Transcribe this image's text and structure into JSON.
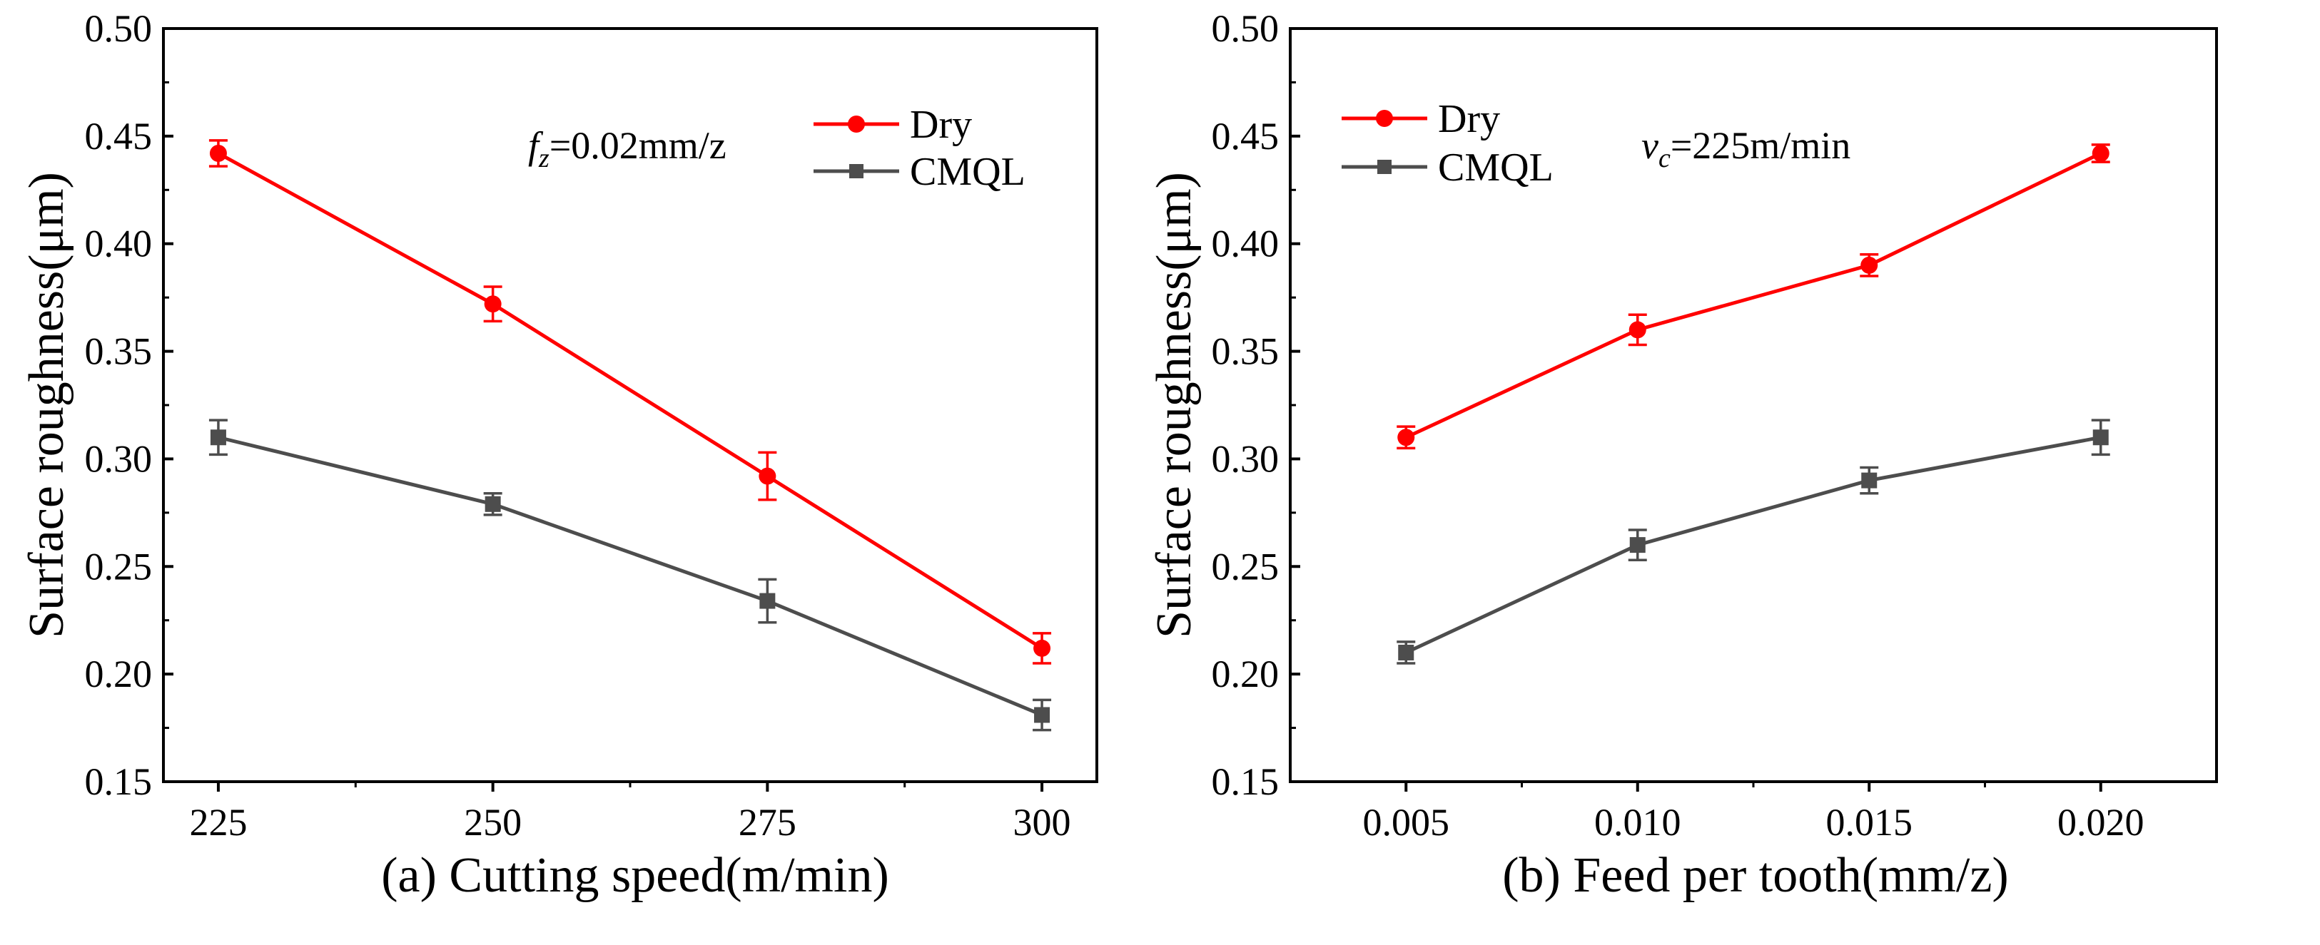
{
  "chart_data": [
    {
      "type": "line",
      "xlabel": "(a) Cutting speed(m/min)",
      "ylabel": "Surface roughness(μm)",
      "annotation": {
        "main": "f",
        "sub": "z",
        "rest": "=0.02mm/z"
      },
      "x": [
        225,
        250,
        275,
        300
      ],
      "xticks": [
        "225",
        "250",
        "275",
        "300"
      ],
      "xlim": [
        220,
        305
      ],
      "ylim": [
        0.15,
        0.5
      ],
      "yticks": [
        "0.15",
        "0.20",
        "0.25",
        "0.30",
        "0.35",
        "0.40",
        "0.45",
        "0.50"
      ],
      "legend_position": "top-right",
      "series": [
        {
          "name": "Dry",
          "color": "#ff0000",
          "marker": "circle",
          "values": [
            0.442,
            0.372,
            0.292,
            0.212
          ],
          "errors": [
            0.006,
            0.008,
            0.011,
            0.007
          ]
        },
        {
          "name": "CMQL",
          "color": "#4d4d4d",
          "marker": "square",
          "values": [
            0.31,
            0.279,
            0.234,
            0.181
          ],
          "errors": [
            0.008,
            0.005,
            0.01,
            0.007
          ]
        }
      ]
    },
    {
      "type": "line",
      "xlabel": "(b) Feed per tooth(mm/z)",
      "ylabel": "Surface roughness(μm)",
      "annotation": {
        "main": "v",
        "sub": "c",
        "rest": "=225m/min"
      },
      "x": [
        0.005,
        0.01,
        0.015,
        0.02
      ],
      "xticks": [
        "0.005",
        "0.010",
        "0.015",
        "0.020"
      ],
      "xlim": [
        0.0025,
        0.0225
      ],
      "ylim": [
        0.15,
        0.5
      ],
      "yticks": [
        "0.15",
        "0.20",
        "0.25",
        "0.30",
        "0.35",
        "0.40",
        "0.45",
        "0.50"
      ],
      "legend_position": "top-left",
      "series": [
        {
          "name": "Dry",
          "color": "#ff0000",
          "marker": "circle",
          "values": [
            0.31,
            0.36,
            0.39,
            0.442
          ],
          "errors": [
            0.005,
            0.007,
            0.005,
            0.004
          ]
        },
        {
          "name": "CMQL",
          "color": "#4d4d4d",
          "marker": "square",
          "values": [
            0.21,
            0.26,
            0.29,
            0.31
          ],
          "errors": [
            0.005,
            0.007,
            0.006,
            0.008
          ]
        }
      ]
    }
  ]
}
